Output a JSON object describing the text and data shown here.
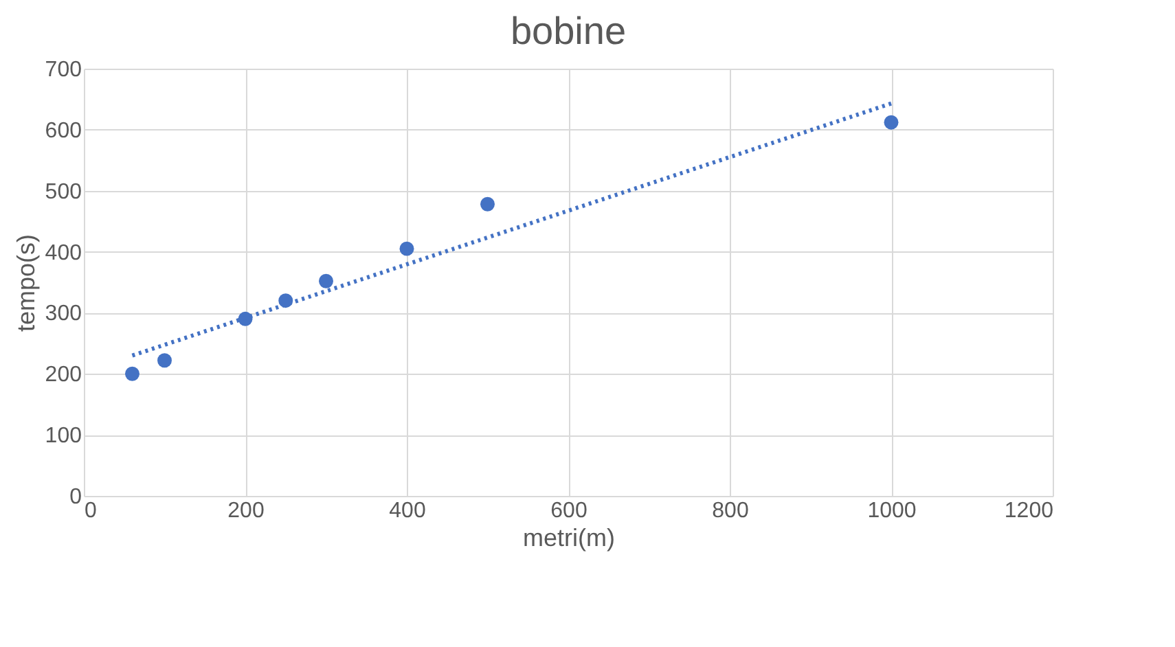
{
  "chart_data": {
    "type": "scatter",
    "title": "bobine",
    "xlabel": "metri(m)",
    "ylabel": "tempo(s)",
    "x": [
      60,
      100,
      200,
      250,
      300,
      400,
      500,
      1000
    ],
    "series": [
      {
        "type": "scatter",
        "color": "#4472c4",
        "marker": "circle",
        "values": [
          200,
          222,
          290,
          320,
          352,
          405,
          478,
          612
        ]
      },
      {
        "type": "line",
        "color": "#4472c4",
        "marker": "none",
        "line_style": "dotted",
        "x": [
          60,
          1000
        ],
        "values": [
          230,
          643
        ]
      }
    ],
    "xlim": [
      0,
      1200
    ],
    "xticks": [
      0,
      200,
      400,
      600,
      800,
      1000,
      1200
    ],
    "ylim": [
      0,
      700
    ],
    "yticks": [
      0,
      100,
      200,
      300,
      400,
      500,
      600,
      700
    ],
    "grid": true,
    "legend": false
  }
}
